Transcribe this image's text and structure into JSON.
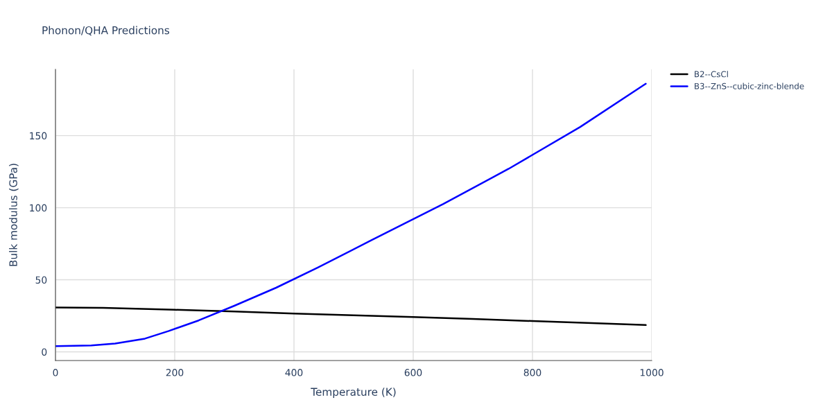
{
  "chart_data": {
    "type": "line",
    "title": "Phonon/QHA Predictions",
    "xlabel": "Temperature (K)",
    "ylabel": "Bulk modulus (GPa)",
    "xlim": [
      0,
      1000
    ],
    "xticks": [
      0,
      200,
      400,
      600,
      800,
      1000
    ],
    "ylim": [
      -6,
      196
    ],
    "yticks": [
      0,
      50,
      100,
      150
    ],
    "grid": true,
    "legend": "top right",
    "series": [
      {
        "name": "B2--CsCl",
        "color": "#000000",
        "x": [
          0,
          80,
          200,
          300,
          400,
          500,
          600,
          700,
          800,
          900,
          990
        ],
        "values": [
          30.8,
          30.5,
          29.2,
          28.0,
          26.6,
          25.4,
          24.2,
          22.8,
          21.4,
          20.0,
          18.6
        ]
      },
      {
        "name": "B3--ZnS--cubic-zinc-blende",
        "color": "#0000ff",
        "x": [
          0,
          60,
          100,
          150,
          190,
          240,
          300,
          370,
          440,
          530,
          650,
          760,
          880,
          990
        ],
        "values": [
          4.0,
          4.5,
          5.8,
          9.2,
          14.5,
          21.8,
          32.0,
          44.5,
          58.5,
          77.5,
          102.5,
          127.0,
          156.0,
          186.0
        ]
      }
    ]
  }
}
